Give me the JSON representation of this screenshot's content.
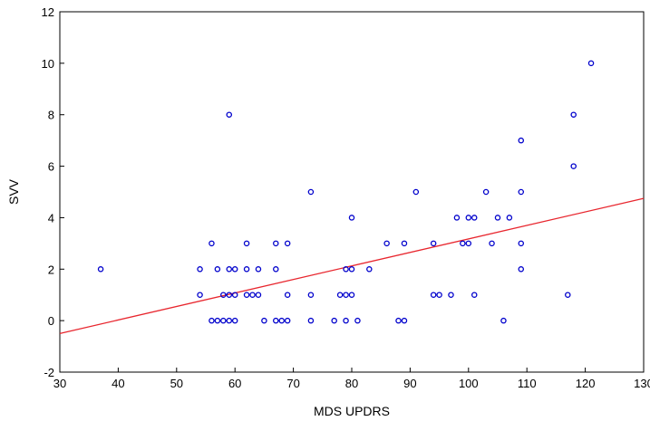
{
  "chart_data": {
    "type": "scatter",
    "title": "",
    "xlabel": "MDS UPDRS",
    "ylabel": "SVV",
    "xlim": [
      30,
      130
    ],
    "ylim": [
      -2,
      12
    ],
    "x_ticks": [
      "30",
      "40",
      "50",
      "60",
      "70",
      "80",
      "90",
      "100",
      "110",
      "120",
      "130"
    ],
    "y_ticks": [
      "-2",
      "0",
      "2",
      "4",
      "6",
      "8",
      "10",
      "12"
    ],
    "grid": false,
    "legend": "none",
    "marker": "open-circle",
    "point_color": "#0000cc",
    "line_color": "#e8262e",
    "regression_line": {
      "x": [
        30,
        130
      ],
      "y": [
        -0.5,
        4.75
      ]
    },
    "points": [
      {
        "x": 37,
        "y": 2
      },
      {
        "x": 54,
        "y": 2
      },
      {
        "x": 54,
        "y": 1
      },
      {
        "x": 56,
        "y": 3
      },
      {
        "x": 56,
        "y": 0
      },
      {
        "x": 57,
        "y": 2
      },
      {
        "x": 57,
        "y": 0
      },
      {
        "x": 58,
        "y": 1
      },
      {
        "x": 58,
        "y": 0
      },
      {
        "x": 59,
        "y": 8
      },
      {
        "x": 59,
        "y": 2
      },
      {
        "x": 59,
        "y": 1
      },
      {
        "x": 59,
        "y": 0
      },
      {
        "x": 60,
        "y": 2
      },
      {
        "x": 60,
        "y": 1
      },
      {
        "x": 60,
        "y": 0
      },
      {
        "x": 62,
        "y": 3
      },
      {
        "x": 62,
        "y": 2
      },
      {
        "x": 62,
        "y": 1
      },
      {
        "x": 63,
        "y": 1
      },
      {
        "x": 64,
        "y": 2
      },
      {
        "x": 64,
        "y": 1
      },
      {
        "x": 65,
        "y": 0
      },
      {
        "x": 67,
        "y": 3
      },
      {
        "x": 67,
        "y": 2
      },
      {
        "x": 67,
        "y": 0
      },
      {
        "x": 68,
        "y": 0
      },
      {
        "x": 69,
        "y": 3
      },
      {
        "x": 69,
        "y": 1
      },
      {
        "x": 69,
        "y": 0
      },
      {
        "x": 73,
        "y": 5
      },
      {
        "x": 73,
        "y": 1
      },
      {
        "x": 73,
        "y": 0
      },
      {
        "x": 77,
        "y": 0
      },
      {
        "x": 78,
        "y": 1
      },
      {
        "x": 79,
        "y": 2
      },
      {
        "x": 79,
        "y": 1
      },
      {
        "x": 79,
        "y": 0
      },
      {
        "x": 80,
        "y": 4
      },
      {
        "x": 80,
        "y": 2
      },
      {
        "x": 80,
        "y": 1
      },
      {
        "x": 81,
        "y": 0
      },
      {
        "x": 83,
        "y": 2
      },
      {
        "x": 86,
        "y": 3
      },
      {
        "x": 88,
        "y": 0
      },
      {
        "x": 89,
        "y": 3
      },
      {
        "x": 89,
        "y": 0
      },
      {
        "x": 91,
        "y": 5
      },
      {
        "x": 94,
        "y": 3
      },
      {
        "x": 94,
        "y": 1
      },
      {
        "x": 95,
        "y": 1
      },
      {
        "x": 97,
        "y": 1
      },
      {
        "x": 98,
        "y": 4
      },
      {
        "x": 99,
        "y": 3
      },
      {
        "x": 100,
        "y": 4
      },
      {
        "x": 100,
        "y": 3
      },
      {
        "x": 101,
        "y": 4
      },
      {
        "x": 101,
        "y": 1
      },
      {
        "x": 103,
        "y": 5
      },
      {
        "x": 104,
        "y": 3
      },
      {
        "x": 105,
        "y": 4
      },
      {
        "x": 106,
        "y": 0
      },
      {
        "x": 107,
        "y": 4
      },
      {
        "x": 109,
        "y": 7
      },
      {
        "x": 109,
        "y": 5
      },
      {
        "x": 109,
        "y": 3
      },
      {
        "x": 109,
        "y": 2
      },
      {
        "x": 117,
        "y": 1
      },
      {
        "x": 118,
        "y": 8
      },
      {
        "x": 118,
        "y": 6
      },
      {
        "x": 121,
        "y": 10
      }
    ]
  }
}
